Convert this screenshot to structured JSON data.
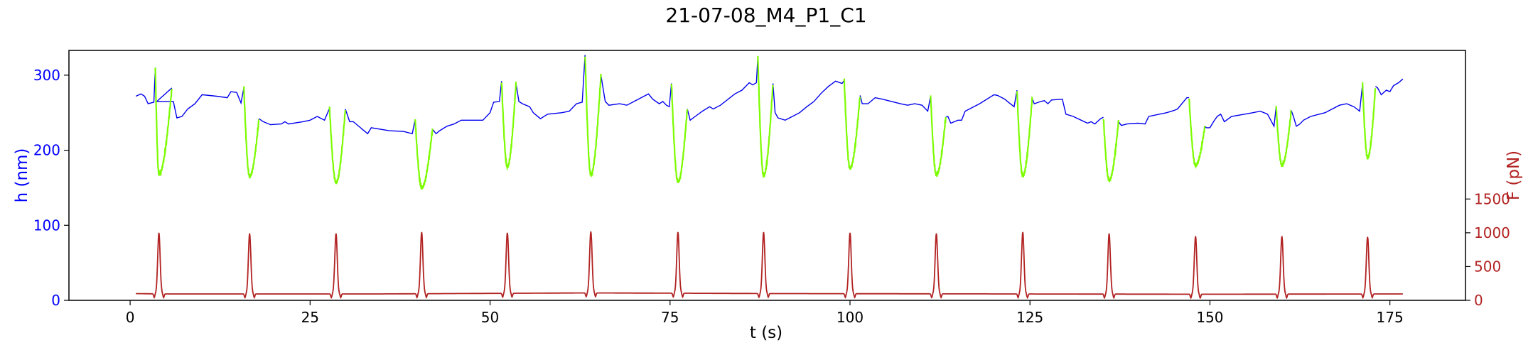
{
  "chart_data": {
    "type": "line",
    "title": "21-07-08_M4_P1_C1",
    "xlabel": "t (s)",
    "ylabel_left": "h (nm)",
    "ylabel_right": "F (pN)",
    "xlim": [
      -8.5,
      185.5
    ],
    "ylim_left": [
      0,
      333
    ],
    "ylim_right": [
      0,
      3700
    ],
    "x_ticks": [
      0,
      25,
      50,
      75,
      100,
      125,
      150,
      175
    ],
    "x_tick_labels": [
      "0",
      "25",
      "50",
      "75",
      "100",
      "125",
      "150",
      "175"
    ],
    "y_left_ticks": [
      0,
      100,
      200,
      300
    ],
    "y_left_tick_labels": [
      "0",
      "100",
      "200",
      "300"
    ],
    "y_right_ticks": [
      0,
      500,
      1000,
      1500
    ],
    "y_right_tick_labels": [
      "0",
      "500",
      "1000",
      "1500"
    ],
    "colors": {
      "height": "#0000ee",
      "compression": "#7cfc00",
      "force": "#b22222",
      "left_axis": "#0000ff",
      "right_axis": "#b22222"
    },
    "grid": false,
    "cycles": [
      {
        "p": 4.0,
        "fs": 3.5,
        "fe": 5.8,
        "fpeak": 1000,
        "hs": 310,
        "hmin": 168,
        "he": 283
      },
      {
        "p": 16.6,
        "fs": 15.8,
        "fe": 17.9,
        "fpeak": 990,
        "hs": 283,
        "hmin": 165,
        "he": 242
      },
      {
        "p": 28.6,
        "fs": 27.7,
        "fe": 29.9,
        "fpeak": 990,
        "hs": 256,
        "hmin": 157,
        "he": 255
      },
      {
        "p": 40.5,
        "fs": 39.6,
        "fe": 42.0,
        "fpeak": 1010,
        "hs": 241,
        "hmin": 150,
        "he": 228
      },
      {
        "p": 52.4,
        "fs": 51.6,
        "fe": 53.6,
        "fpeak": 1000,
        "hs": 292,
        "hmin": 178,
        "he": 289
      },
      {
        "p": 64.0,
        "fs": 63.2,
        "fe": 65.4,
        "fpeak": 1020,
        "hs": 327,
        "hmin": 167,
        "he": 300
      },
      {
        "p": 76.1,
        "fs": 75.2,
        "fe": 77.4,
        "fpeak": 1010,
        "hs": 289,
        "hmin": 158,
        "he": 255
      },
      {
        "p": 88.0,
        "fs": 87.2,
        "fe": 89.3,
        "fpeak": 1010,
        "hs": 324,
        "hmin": 166,
        "he": 289
      },
      {
        "p": 100.0,
        "fs": 99.2,
        "fe": 101.4,
        "fpeak": 1000,
        "hs": 293,
        "hmin": 176,
        "he": 273
      },
      {
        "p": 112.0,
        "fs": 111.2,
        "fe": 113.3,
        "fpeak": 990,
        "hs": 272,
        "hmin": 167,
        "he": 244
      },
      {
        "p": 124.0,
        "fs": 123.2,
        "fe": 125.3,
        "fpeak": 1010,
        "hs": 280,
        "hmin": 166,
        "he": 269
      },
      {
        "p": 136.0,
        "fs": 135.2,
        "fe": 137.3,
        "fpeak": 990,
        "hs": 244,
        "hmin": 160,
        "he": 238
      },
      {
        "p": 148.0,
        "fs": 147.1,
        "fe": 149.3,
        "fpeak": 950,
        "hs": 270,
        "hmin": 180,
        "he": 232
      },
      {
        "p": 160.0,
        "fs": 159.2,
        "fe": 161.3,
        "fpeak": 950,
        "hs": 258,
        "hmin": 180,
        "he": 253
      },
      {
        "p": 171.9,
        "fs": 171.2,
        "fe": 173.0,
        "fpeak": 940,
        "hs": 288,
        "hmin": 190,
        "he": 285
      }
    ],
    "height_baseline": [
      [
        0.8,
        272
      ],
      [
        1.5,
        275
      ],
      [
        2.0,
        272
      ],
      [
        2.5,
        262
      ],
      [
        3.3,
        264
      ],
      [
        3.7,
        265
      ],
      [
        6.0,
        265
      ],
      [
        6.5,
        243
      ],
      [
        7.2,
        245
      ],
      [
        8.0,
        255
      ],
      [
        9.0,
        262
      ],
      [
        10.0,
        274
      ],
      [
        12.0,
        272
      ],
      [
        13.5,
        270
      ],
      [
        14.0,
        278
      ],
      [
        14.8,
        277
      ],
      [
        15.4,
        263
      ],
      [
        18.5,
        238
      ],
      [
        19.5,
        234
      ],
      [
        21.0,
        235
      ],
      [
        21.5,
        238
      ],
      [
        22.0,
        235
      ],
      [
        24.0,
        238
      ],
      [
        25.0,
        240
      ],
      [
        26.0,
        245
      ],
      [
        27.0,
        240
      ],
      [
        30.5,
        238
      ],
      [
        31.0,
        238
      ],
      [
        32.0,
        230
      ],
      [
        33.0,
        222
      ],
      [
        33.5,
        230
      ],
      [
        36.0,
        226
      ],
      [
        38.0,
        225
      ],
      [
        39.2,
        222
      ],
      [
        42.5,
        222
      ],
      [
        43.0,
        226
      ],
      [
        44.0,
        232
      ],
      [
        45.0,
        235
      ],
      [
        46.0,
        240
      ],
      [
        49.0,
        240
      ],
      [
        50.0,
        250
      ],
      [
        50.5,
        264
      ],
      [
        51.3,
        265
      ],
      [
        54.0,
        265
      ],
      [
        54.5,
        262
      ],
      [
        55.5,
        258
      ],
      [
        56.0,
        250
      ],
      [
        57.0,
        242
      ],
      [
        58.0,
        248
      ],
      [
        60.0,
        250
      ],
      [
        61.0,
        252
      ],
      [
        62.0,
        262
      ],
      [
        62.8,
        264
      ],
      [
        66.0,
        265
      ],
      [
        66.5,
        260
      ],
      [
        68.0,
        262
      ],
      [
        69.0,
        260
      ],
      [
        70.0,
        265
      ],
      [
        71.0,
        270
      ],
      [
        72.0,
        275
      ],
      [
        72.6,
        268
      ],
      [
        73.5,
        262
      ],
      [
        74.0,
        265
      ],
      [
        74.5,
        260
      ],
      [
        74.9,
        258
      ],
      [
        77.8,
        240
      ],
      [
        78.5,
        245
      ],
      [
        79.5,
        252
      ],
      [
        80.5,
        258
      ],
      [
        81.0,
        255
      ],
      [
        82.0,
        260
      ],
      [
        84.0,
        275
      ],
      [
        85.0,
        280
      ],
      [
        86.0,
        290
      ],
      [
        86.5,
        287
      ],
      [
        87.0,
        290
      ],
      [
        89.6,
        250
      ],
      [
        90.0,
        243
      ],
      [
        91.0,
        240
      ],
      [
        92.0,
        245
      ],
      [
        93.0,
        250
      ],
      [
        94.0,
        258
      ],
      [
        95.0,
        265
      ],
      [
        96.0,
        276
      ],
      [
        97.0,
        285
      ],
      [
        98.0,
        292
      ],
      [
        98.9,
        289
      ],
      [
        101.7,
        262
      ],
      [
        102.5,
        262
      ],
      [
        103.5,
        270
      ],
      [
        104.5,
        268
      ],
      [
        107.0,
        262
      ],
      [
        108.0,
        260
      ],
      [
        109.0,
        262
      ],
      [
        110.0,
        260
      ],
      [
        110.8,
        252
      ],
      [
        113.6,
        245
      ],
      [
        114.0,
        236
      ],
      [
        115.0,
        240
      ],
      [
        115.5,
        240
      ],
      [
        116.0,
        252
      ],
      [
        118.0,
        262
      ],
      [
        120.0,
        274
      ],
      [
        120.5,
        273
      ],
      [
        121.5,
        268
      ],
      [
        122.0,
        264
      ],
      [
        122.8,
        258
      ],
      [
        125.6,
        262
      ],
      [
        126.5,
        265
      ],
      [
        127.0,
        266
      ],
      [
        127.5,
        262
      ],
      [
        128.0,
        267
      ],
      [
        129.5,
        268
      ],
      [
        130.0,
        248
      ],
      [
        131.0,
        245
      ],
      [
        133.0,
        236
      ],
      [
        133.5,
        238
      ],
      [
        134.0,
        235
      ],
      [
        134.8,
        242
      ],
      [
        137.7,
        233
      ],
      [
        138.5,
        235
      ],
      [
        140.0,
        236
      ],
      [
        141.0,
        235
      ],
      [
        141.5,
        245
      ],
      [
        144.0,
        250
      ],
      [
        145.0,
        253
      ],
      [
        145.5,
        255
      ],
      [
        146.8,
        270
      ],
      [
        149.5,
        230
      ],
      [
        150.0,
        230
      ],
      [
        150.5,
        238
      ],
      [
        151.0,
        245
      ],
      [
        151.5,
        248
      ],
      [
        152.0,
        238
      ],
      [
        153.0,
        245
      ],
      [
        156.0,
        250
      ],
      [
        157.0,
        252
      ],
      [
        158.0,
        248
      ],
      [
        158.9,
        232
      ],
      [
        161.6,
        245
      ],
      [
        162.0,
        232
      ],
      [
        162.5,
        235
      ],
      [
        163.0,
        240
      ],
      [
        164.0,
        245
      ],
      [
        166.0,
        250
      ],
      [
        168.0,
        260
      ],
      [
        169.0,
        262
      ],
      [
        170.0,
        258
      ],
      [
        170.8,
        252
      ],
      [
        173.3,
        283
      ],
      [
        173.8,
        274
      ],
      [
        174.5,
        280
      ],
      [
        175.0,
        278
      ],
      [
        175.5,
        286
      ],
      [
        176.2,
        290
      ],
      [
        176.8,
        295
      ]
    ],
    "force_baseline": [
      [
        0.8,
        100
      ],
      [
        4.0,
        95
      ],
      [
        35.0,
        95
      ],
      [
        64.0,
        110
      ],
      [
        90.0,
        100
      ],
      [
        120.0,
        95
      ],
      [
        150.0,
        90
      ],
      [
        176.8,
        95
      ]
    ]
  }
}
